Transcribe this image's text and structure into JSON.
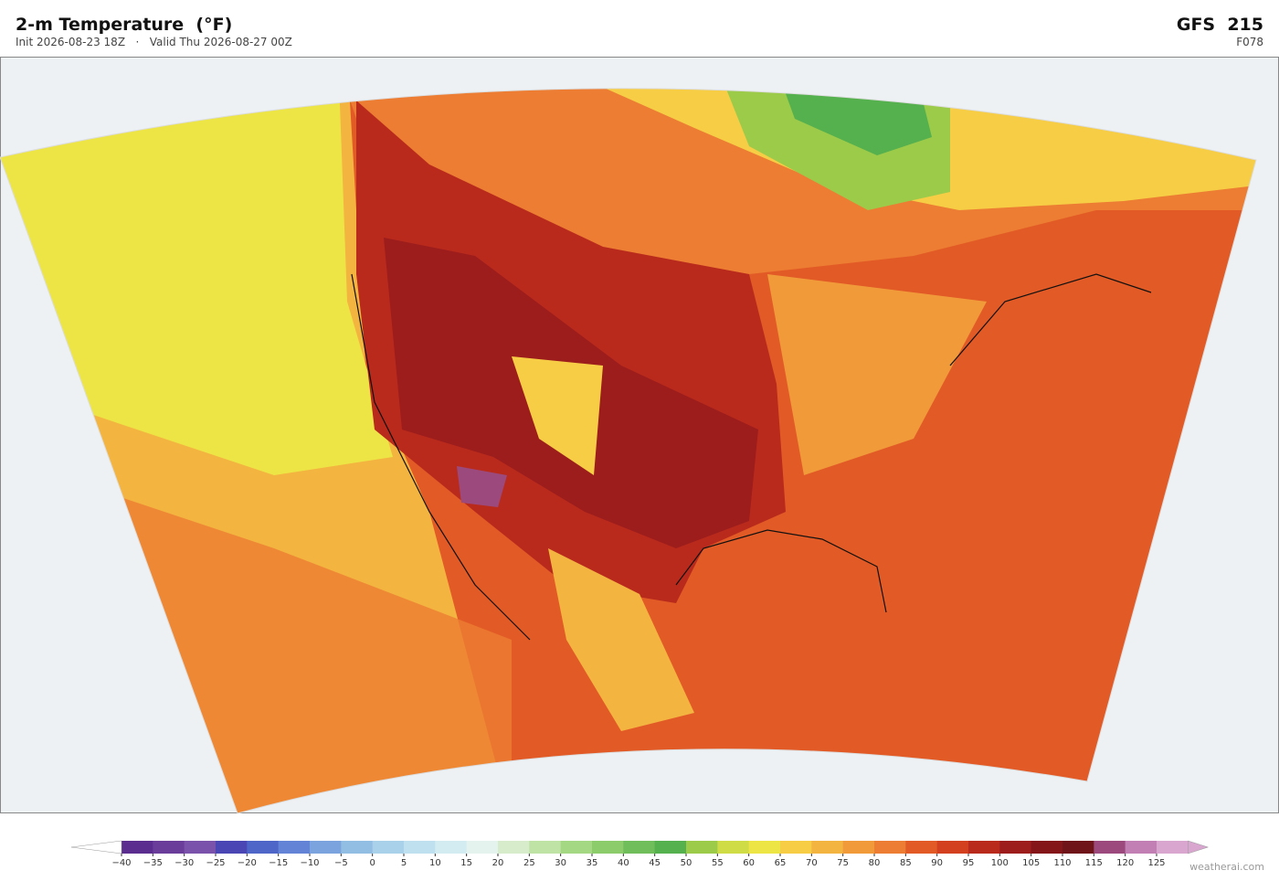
{
  "header": {
    "title": "2-m Temperature  (°F)",
    "subtitle": "Init 2026-08-23 18Z   ·   Valid Thu 2026-08-27 00Z",
    "model": "GFS  215",
    "forecast_hour": "F078"
  },
  "colorbar": {
    "ticks": [
      {
        "value": -40,
        "label": "−40"
      },
      {
        "value": -35,
        "label": "−35"
      },
      {
        "value": -30,
        "label": "−30"
      },
      {
        "value": -25,
        "label": "−25"
      },
      {
        "value": -20,
        "label": "−20"
      },
      {
        "value": -15,
        "label": "−15"
      },
      {
        "value": -10,
        "label": "−10"
      },
      {
        "value": -5,
        "label": "−5"
      },
      0,
      5,
      10,
      15,
      20,
      25,
      30,
      35,
      40,
      45,
      50,
      55,
      60,
      65,
      70,
      75,
      80,
      85,
      90,
      95,
      100,
      105,
      110,
      115,
      120,
      125
    ],
    "colors": [
      "#5b2d8e",
      "#6a3d9a",
      "#7b52ab",
      "#4a47b5",
      "#4f66c9",
      "#6384d6",
      "#7ba3dd",
      "#93bee3",
      "#a9d1ea",
      "#bfe0ef",
      "#d3ecf2",
      "#e4f3ee",
      "#d6eccb",
      "#bfe3a4",
      "#a4d883",
      "#8ccc6b",
      "#6fbd5b",
      "#55b04e",
      "#9ccb4a",
      "#cfdc45",
      "#ede545",
      "#f6cd45",
      "#f4b440",
      "#f19a3a",
      "#ec7d32",
      "#e25a26",
      "#d2401f",
      "#b92a1c",
      "#9c1d1c",
      "#84161a",
      "#6f1418",
      "#9c4a7d",
      "#c27fb3",
      "#d8a6cf"
    ],
    "under_color": "#ffffff",
    "over_color": "#d8a6cf"
  },
  "watermark": "weatherai.com"
}
